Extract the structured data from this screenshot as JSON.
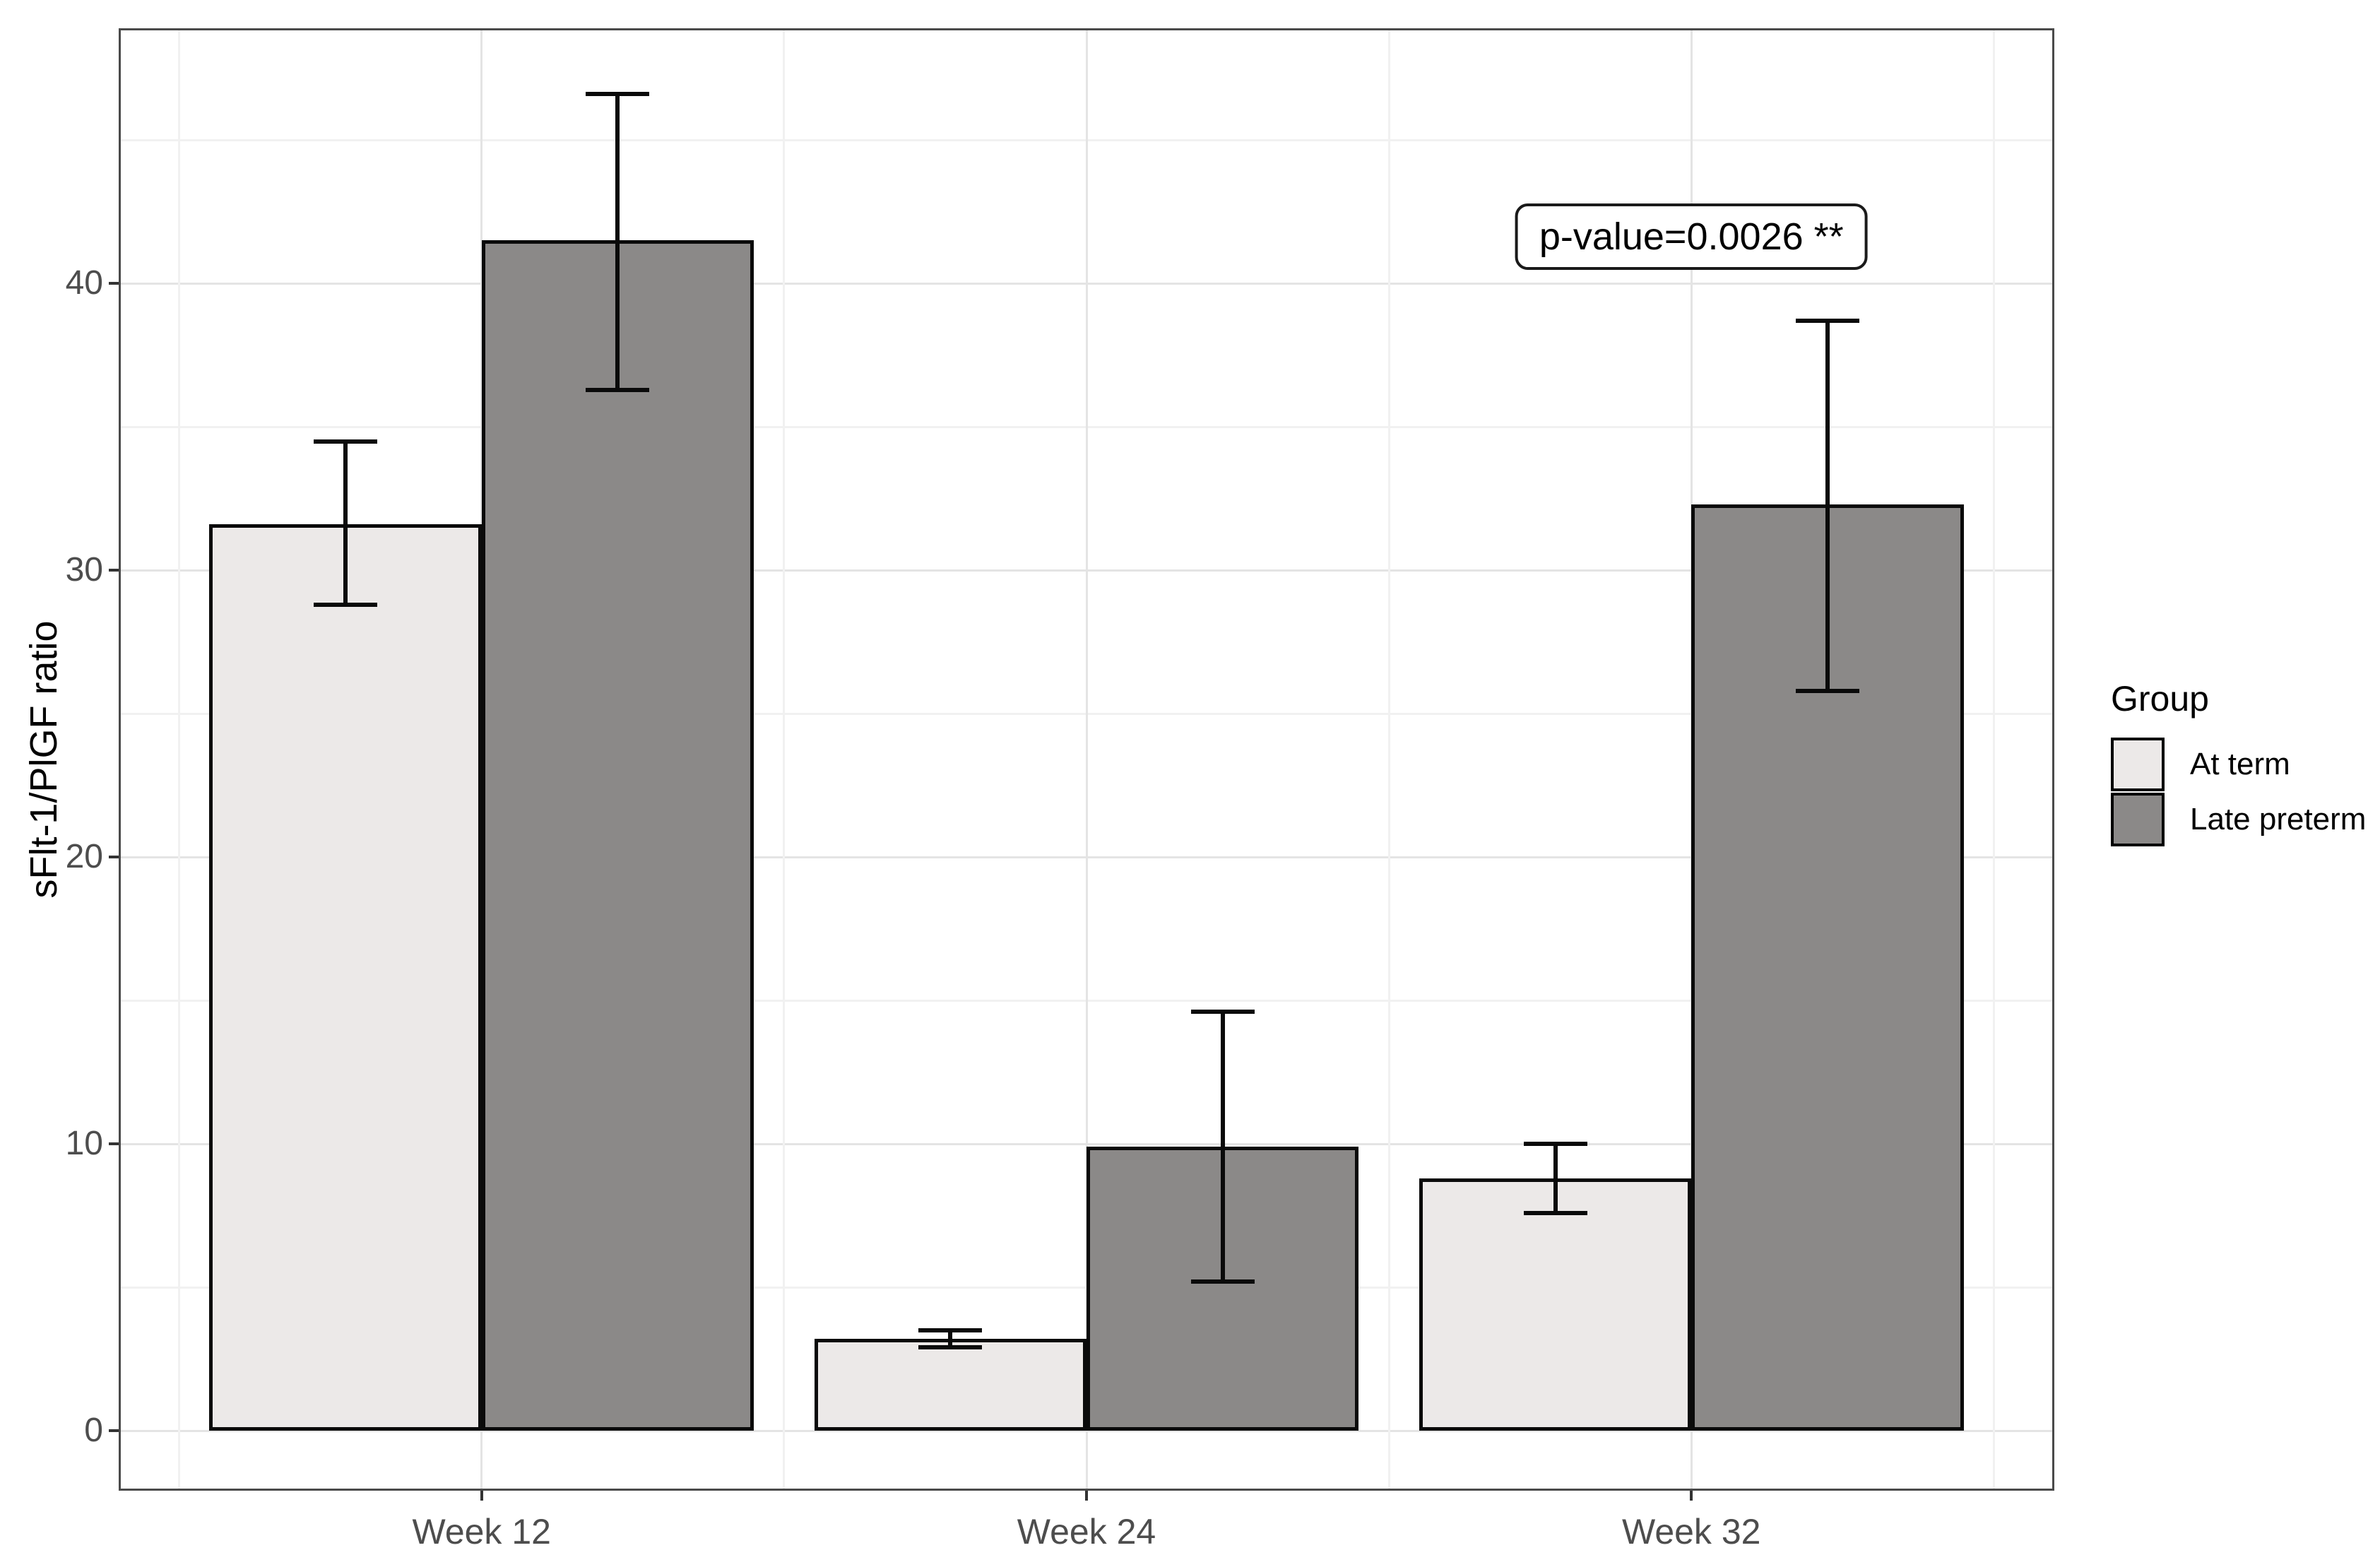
{
  "chart_data": {
    "type": "bar",
    "title": "",
    "categories": [
      "Week 12",
      "Week 24",
      "Week 32"
    ],
    "series": [
      {
        "name": "At term",
        "color": "#ece9e8",
        "values": [
          31.6,
          3.2,
          8.8
        ],
        "error_low": [
          28.8,
          2.9,
          7.6
        ],
        "error_high": [
          34.5,
          3.5,
          10.0
        ]
      },
      {
        "name": "Late preterm",
        "color": "#8b8988",
        "values": [
          41.5,
          9.9,
          32.3
        ],
        "error_low": [
          36.3,
          5.2,
          25.8
        ],
        "error_high": [
          46.6,
          14.6,
          38.7
        ]
      }
    ],
    "xlabel": "",
    "ylabel": "sFlt-1/PlGF ratio",
    "yticks": [
      0,
      10,
      20,
      30,
      40
    ],
    "yticks_minor": [
      5,
      15,
      25,
      35,
      45
    ],
    "ylim": [
      -2.09,
      48.9
    ],
    "grid": "major+minor",
    "bar_outline_color": "#0a0a0a",
    "legend_position": "right",
    "legend_title": "Group",
    "annotation": "p-value=0.0026 **",
    "annotation_position": {
      "category": "Week 32",
      "y_top": 42.8
    }
  }
}
